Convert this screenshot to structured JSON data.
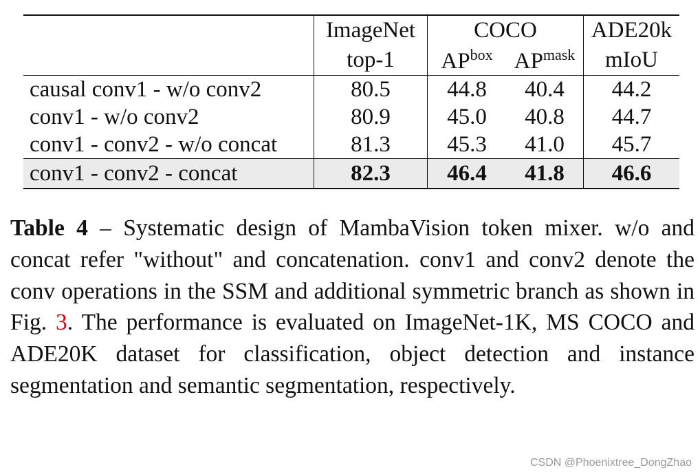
{
  "table": {
    "header": {
      "col1_line1": "ImageNet",
      "col1_line2": "top-1",
      "col2_group": "COCO",
      "col2_box_base": "AP",
      "col2_box_sup": "box",
      "col2_mask_base": "AP",
      "col2_mask_sup": "mask",
      "col3_line1": "ADE20k",
      "col3_line2": "mIoU"
    },
    "rows": [
      {
        "name": "causal conv1 - w/o conv2",
        "top1": "80.5",
        "ap_box": "44.8",
        "ap_mask": "40.4",
        "miou": "44.2"
      },
      {
        "name": "conv1 - w/o conv2",
        "top1": "80.9",
        "ap_box": "45.0",
        "ap_mask": "40.8",
        "miou": "44.7"
      },
      {
        "name": "conv1 - conv2 - w/o concat",
        "top1": "81.3",
        "ap_box": "45.3",
        "ap_mask": "41.0",
        "miou": "45.7"
      },
      {
        "name": "conv1 - conv2 - concat",
        "top1": "82.3",
        "ap_box": "46.4",
        "ap_mask": "41.8",
        "miou": "46.6"
      }
    ]
  },
  "caption": {
    "label": "Table 4",
    "text_before_ref": " – Systematic design of MambaVision token mixer. w/o and concat refer \"without\" and concatenation. conv1 and conv2 denote the conv operations in the SSM and additional symmetric branch as shown in Fig. ",
    "fig_ref": "3",
    "text_after_ref": ".  The performance is evaluated on ImageNet-1K, MS COCO and ADE20K dataset for classification, object detection and instance segmentation and semantic segmentation, respectively."
  },
  "watermark": "CSDN @Phoenixtree_DongZhao",
  "colors": {
    "highlight_row": "#ebebeb",
    "fig_ref": "#e3000f"
  }
}
